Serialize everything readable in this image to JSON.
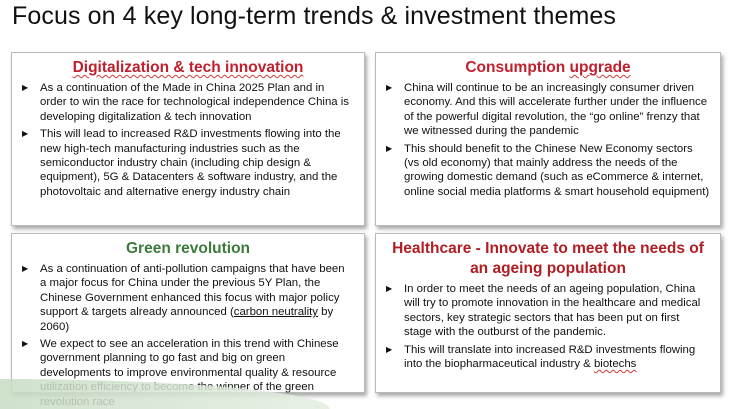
{
  "title": "Focus on 4 key long-term trends & investment themes",
  "colors": {
    "heading_red": "#c0202e",
    "heading_green": "#3c7a3c",
    "heading_dark_red": "#b01e24"
  },
  "cards": {
    "digital": {
      "heading": "Digitalization & tech innovation",
      "b1": "As a continuation of the Made in China 2025 Plan and in order to win the race for technological independence China is developing digitalization & tech innovation",
      "b2": "This will lead to increased R&D investments flowing into the new high-tech manufacturing industries such as the semiconductor industry chain (including chip design & equipment), 5G & Datacenters & software industry, and the photovoltaic and alternative energy industry chain"
    },
    "consumption": {
      "heading_pre": "Consumption ",
      "heading_ul": "upgrade",
      "b1": "China will continue to be an increasingly consumer driven economy. And this will accelerate further under the influence of the powerful digital revolution, the “go online” frenzy that we witnessed during the pandemic",
      "b2": "This should benefit to the Chinese New Economy sectors (vs old economy) that mainly address the needs of the growing domestic demand (such as eCommerce & internet, online social media platforms & smart household equipment)"
    },
    "green": {
      "heading": "Green revolution",
      "b1_pre": "As a continuation of anti-pollution campaigns that have been a major focus for China under the previous 5Y Plan, the Chinese Government enhanced this focus with major policy support & targets already announced (",
      "b1_ul": "carbon neutrality",
      "b1_post": " by 2060)",
      "b2": "We expect to see an acceleration in this trend with Chinese government planning to go fast and big on green developments to improve environmental quality & resource utilization efficiency to become the winner of the green revolution race"
    },
    "health": {
      "heading": "Healthcare - Innovate to meet the needs of an ageing population",
      "b1": "In order to meet the needs of an ageing population, China will try to promote innovation in the healthcare and medical sectors, key strategic sectors that has been put on first stage with the outburst of the pandemic.",
      "b2_pre": "This will translate into increased R&D investments flowing into the biopharmaceutical industry & ",
      "b2_ul": "biotechs"
    }
  },
  "bullet_glyph": "▶"
}
